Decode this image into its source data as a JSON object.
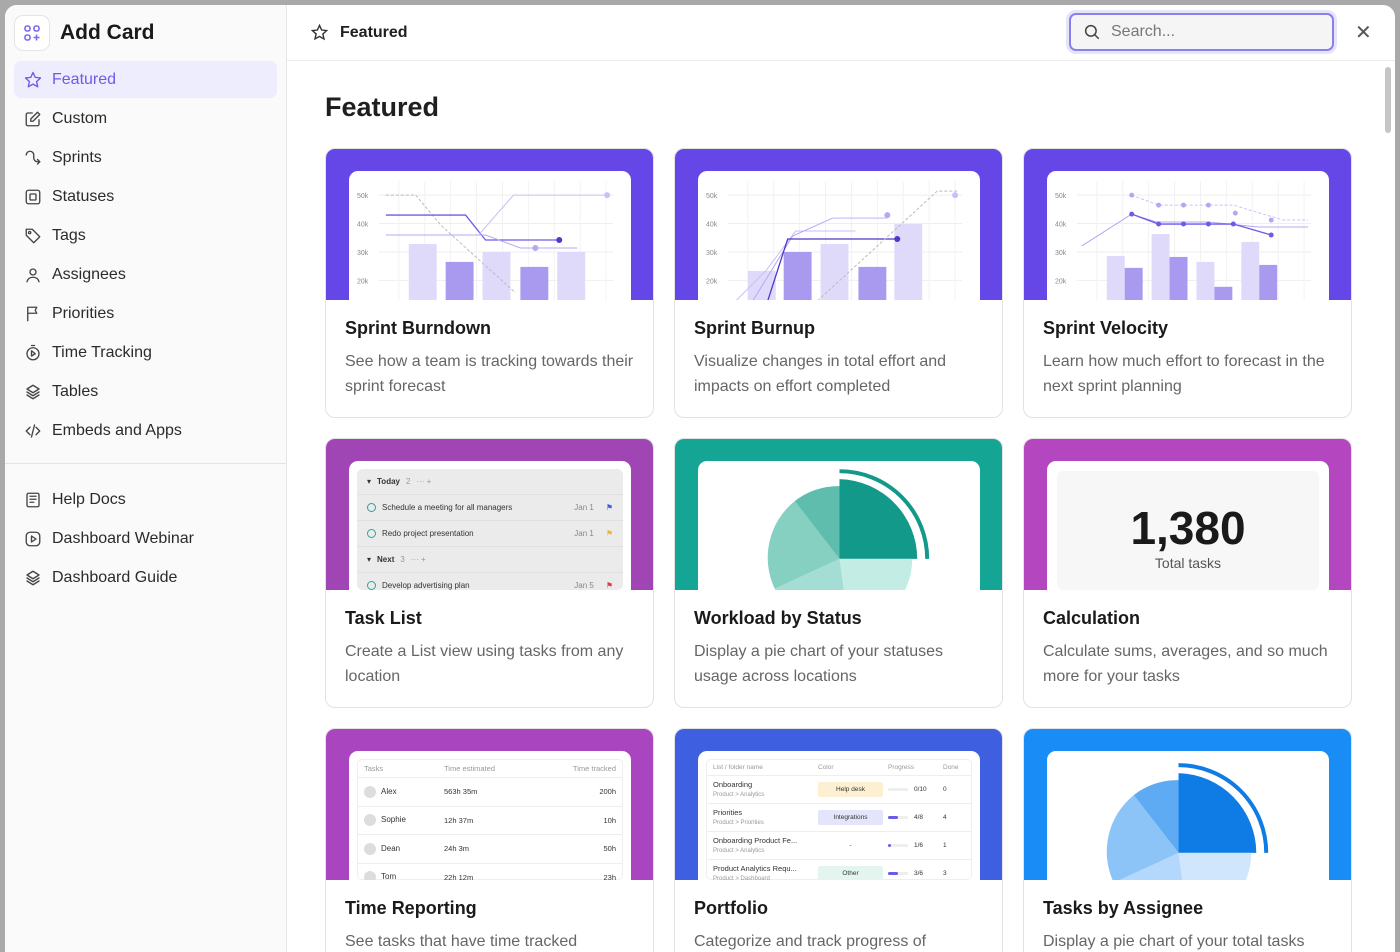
{
  "app": {
    "title": "Add Card"
  },
  "sidebar": {
    "items": [
      {
        "label": "Featured",
        "icon": "star-icon",
        "active": true
      },
      {
        "label": "Custom",
        "icon": "edit-icon"
      },
      {
        "label": "Sprints",
        "icon": "sprint-icon"
      },
      {
        "label": "Statuses",
        "icon": "status-icon"
      },
      {
        "label": "Tags",
        "icon": "tag-icon"
      },
      {
        "label": "Assignees",
        "icon": "user-icon"
      },
      {
        "label": "Priorities",
        "icon": "flag-icon"
      },
      {
        "label": "Time Tracking",
        "icon": "timer-icon"
      },
      {
        "label": "Tables",
        "icon": "layers-icon"
      },
      {
        "label": "Embeds and Apps",
        "icon": "code-icon"
      }
    ],
    "help": [
      {
        "label": "Help Docs",
        "icon": "book-icon"
      },
      {
        "label": "Dashboard Webinar",
        "icon": "play-icon"
      },
      {
        "label": "Dashboard Guide",
        "icon": "layers-icon"
      }
    ]
  },
  "header": {
    "title": "Featured",
    "search_placeholder": "Search..."
  },
  "main": {
    "heading": "Featured",
    "cards": [
      {
        "title": "Sprint Burndown",
        "desc": "See how a team is tracking towards their sprint forecast",
        "color": "#6547e8"
      },
      {
        "title": "Sprint Burnup",
        "desc": "Visualize changes in total effort and impacts on effort completed",
        "color": "#6547e8"
      },
      {
        "title": "Sprint Velocity",
        "desc": "Learn how much effort to forecast in the next sprint planning",
        "color": "#6547e8"
      },
      {
        "title": "Task List",
        "desc": "Create a List view using tasks from any location",
        "color": "#a046b4"
      },
      {
        "title": "Workload by Status",
        "desc": "Display a pie chart of your statuses usage across locations",
        "color": "#14a594"
      },
      {
        "title": "Calculation",
        "desc": "Calculate sums, averages, and so much more for your tasks",
        "color": "#b446c0"
      },
      {
        "title": "Time Reporting",
        "desc": "See tasks that have time tracked",
        "color": "#a946bf"
      },
      {
        "title": "Portfolio",
        "desc": "Categorize and track progress of",
        "color": "#3d5fe0"
      },
      {
        "title": "Tasks by Assignee",
        "desc": "Display a pie chart of your total tasks",
        "color": "#1a8cf5"
      }
    ]
  },
  "chart_ticks": [
    "50k",
    "40k",
    "30k",
    "20k"
  ],
  "task_list": {
    "groups": [
      {
        "name": "Today",
        "count": "2",
        "tasks": [
          {
            "name": "Schedule a meeting for all managers",
            "date": "Jan 1",
            "flag": "#3d5fe0"
          },
          {
            "name": "Redo project presentation",
            "date": "Jan 1",
            "flag": "#f0b429"
          }
        ]
      },
      {
        "name": "Next",
        "count": "3",
        "tasks": [
          {
            "name": "Develop advertising plan",
            "date": "Jan 5",
            "flag": "#e03c3c"
          }
        ]
      }
    ]
  },
  "calculation": {
    "value": "1,380",
    "label": "Total tasks"
  },
  "time_reporting": {
    "headers": [
      "Tasks",
      "Time estimated",
      "Time tracked"
    ],
    "rows": [
      [
        "Alex",
        "563h 35m",
        "200h"
      ],
      [
        "Sophie",
        "12h 37m",
        "10h"
      ],
      [
        "Dean",
        "24h 3m",
        "50h"
      ],
      [
        "Tom",
        "22h 12m",
        "23h"
      ]
    ]
  },
  "portfolio": {
    "headers": [
      "List / folder name",
      "Color",
      "Progress",
      "Done"
    ],
    "rows": [
      {
        "name": "Onboarding",
        "path": "Product > Analytics",
        "tag": "Help desk",
        "tag_bg": "#fdf0d2",
        "progress": "0/10",
        "pct": 0,
        "done": "0"
      },
      {
        "name": "Priorities",
        "path": "Product > Priorities",
        "tag": "Integrations",
        "tag_bg": "#e4e4fc",
        "progress": "4/8",
        "pct": 50,
        "done": "4"
      },
      {
        "name": "Onboarding Product Fe...",
        "path": "Product > Analytics",
        "tag": "-",
        "tag_bg": "transparent",
        "progress": "1/6",
        "pct": 17,
        "done": "1"
      },
      {
        "name": "Product Analytics Requ...",
        "path": "Product > Dashboard",
        "tag": "Other",
        "tag_bg": "#e4f5f0",
        "progress": "3/6",
        "pct": 50,
        "done": "3"
      }
    ]
  }
}
